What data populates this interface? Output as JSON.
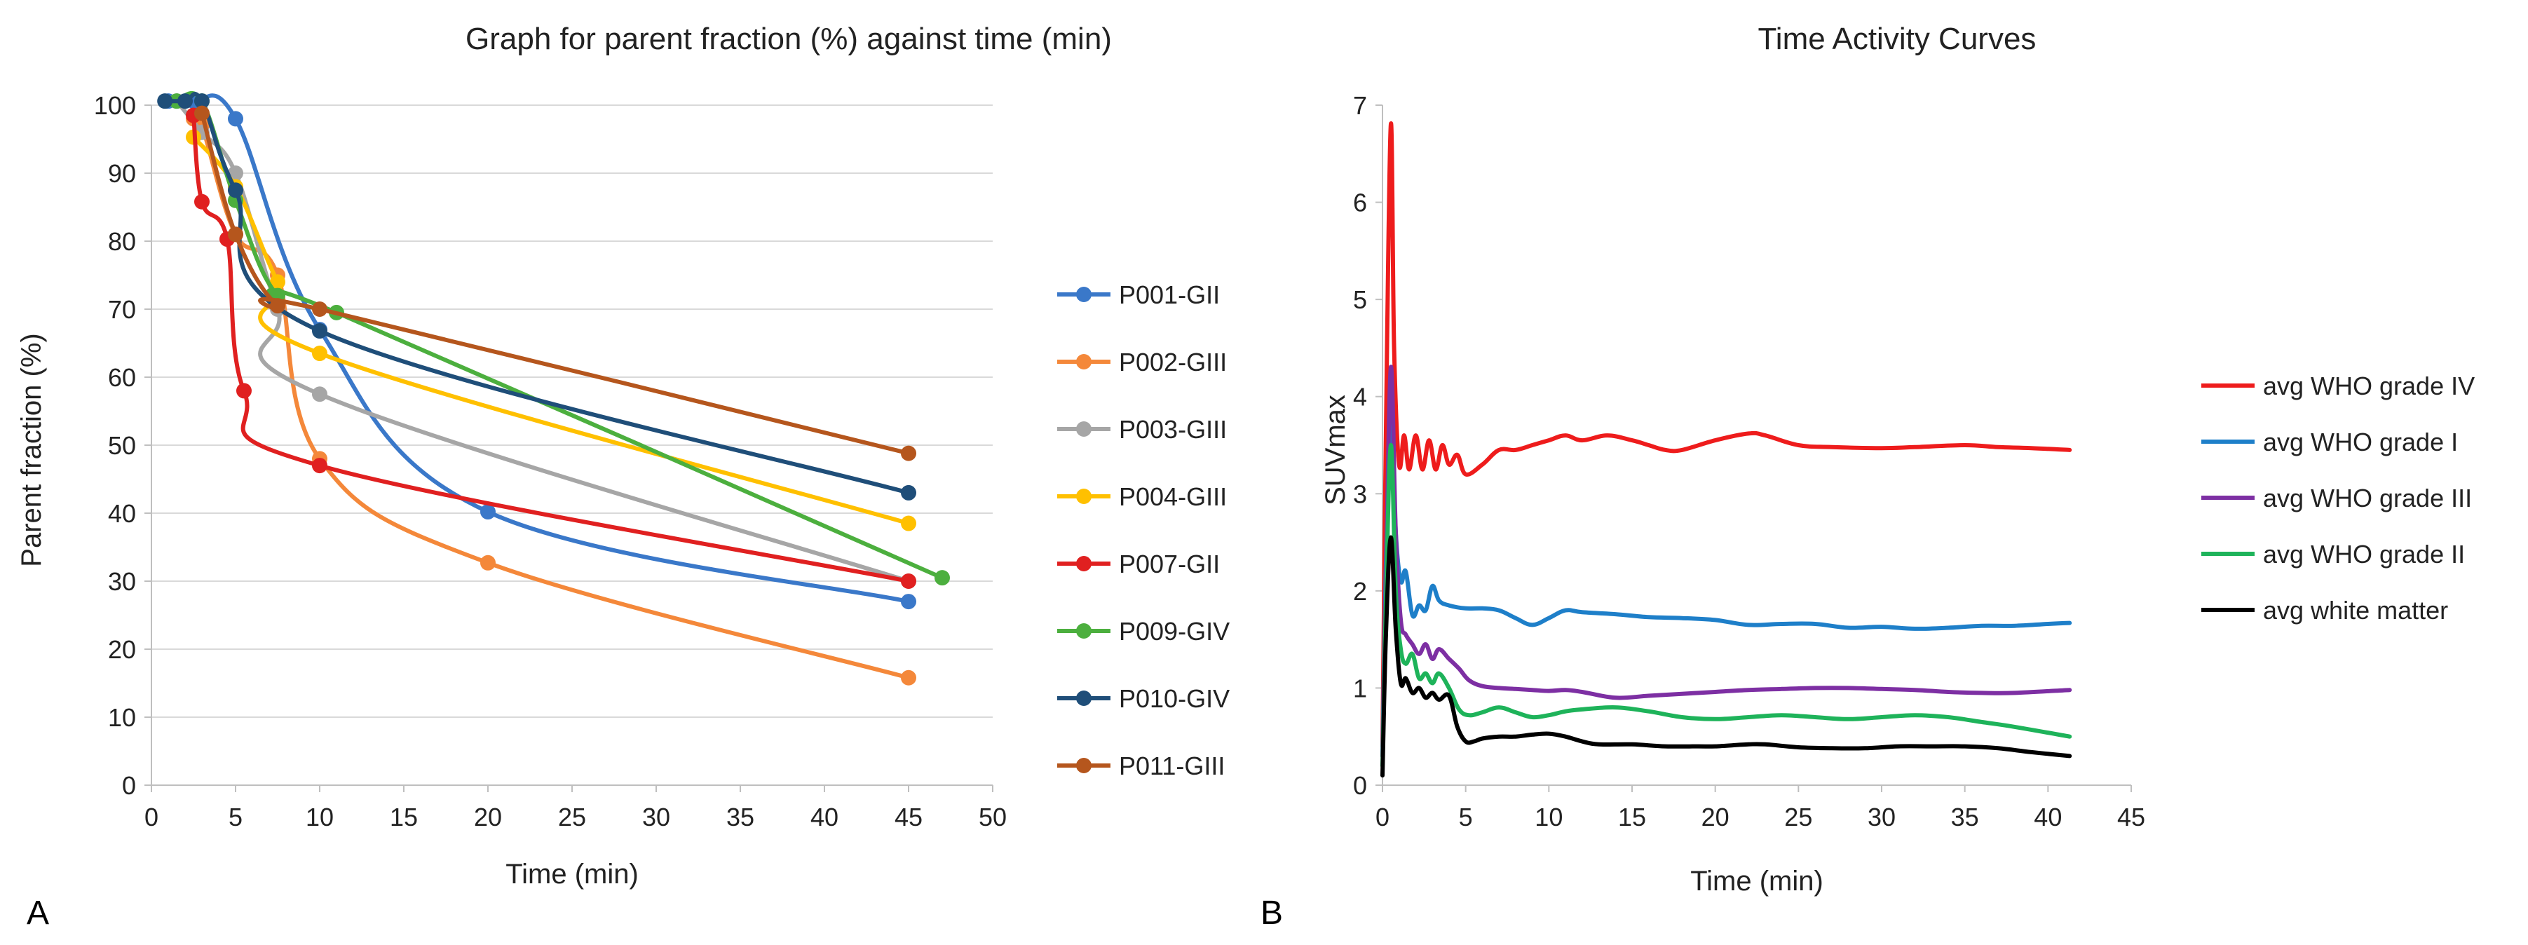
{
  "panel_labels": {
    "a": "A",
    "b": "B"
  },
  "chart_data": [
    {
      "type": "line",
      "title": "Graph for parent fraction (%) against time (min)",
      "xlabel": "Time (min)",
      "ylabel": "Parent fraction (%)",
      "xlim": [
        0,
        50
      ],
      "ylim": [
        0,
        100
      ],
      "xticks": [
        0,
        5,
        10,
        15,
        20,
        25,
        30,
        35,
        40,
        45,
        50
      ],
      "yticks": [
        0,
        10,
        20,
        30,
        40,
        50,
        60,
        70,
        80,
        90,
        100
      ],
      "grid": "horizontal",
      "legend_position": "right",
      "markers": true,
      "series": [
        {
          "name": "P001-GII",
          "color": "#3a78c9",
          "x": [
            1,
            2.5,
            5,
            10,
            20,
            45
          ],
          "y": [
            100.6,
            100.6,
            98,
            67,
            40.2,
            27
          ]
        },
        {
          "name": "P002-GIII",
          "color": "#f4883a",
          "x": [
            2.5,
            3,
            5,
            7.5,
            10,
            20,
            45
          ],
          "y": [
            98,
            97,
            81,
            75,
            48,
            32.7,
            15.8
          ]
        },
        {
          "name": "P003-GIII",
          "color": "#a6a6a6",
          "x": [
            1.5,
            3,
            5,
            7.5,
            10,
            45
          ],
          "y": [
            100.6,
            96,
            90,
            70,
            57.5,
            30
          ]
        },
        {
          "name": "P004-GIII",
          "color": "#ffc000",
          "x": [
            2.5,
            5,
            7.5,
            10,
            45
          ],
          "y": [
            95.3,
            88,
            74,
            63.5,
            38.5
          ]
        },
        {
          "name": "P007-GII",
          "color": "#e02020",
          "x": [
            2.5,
            3,
            4.5,
            5.5,
            10,
            45
          ],
          "y": [
            98.5,
            85.8,
            80.3,
            58,
            47,
            30
          ]
        },
        {
          "name": "P009-GIV",
          "color": "#4caf3e",
          "x": [
            1.5,
            3,
            5,
            7.5,
            11,
            47
          ],
          "y": [
            100.6,
            100.6,
            86,
            72,
            69.5,
            30.5
          ]
        },
        {
          "name": "P010-GIV",
          "color": "#1f4e79",
          "x": [
            0.8,
            2,
            3,
            5,
            10,
            45
          ],
          "y": [
            100.6,
            100.6,
            100.6,
            87.5,
            66.8,
            43
          ]
        },
        {
          "name": "P011-GIII",
          "color": "#b5561d",
          "x": [
            3,
            5,
            7.5,
            10,
            45
          ],
          "y": [
            98.8,
            81,
            70.5,
            70,
            48.8
          ]
        }
      ]
    },
    {
      "type": "line",
      "title": "Time Activity Curves",
      "xlabel": "Time (min)",
      "ylabel": "SUVmax",
      "xlim": [
        0,
        45
      ],
      "ylim": [
        0,
        7
      ],
      "xticks": [
        0,
        5,
        10,
        15,
        20,
        25,
        30,
        35,
        40,
        45
      ],
      "yticks": [
        0,
        1,
        2,
        3,
        4,
        5,
        6,
        7
      ],
      "grid": "none",
      "legend_position": "right",
      "markers": false,
      "series": [
        {
          "name": "avg WHO grade IV",
          "color": "#ee1c1c",
          "x": [
            0,
            0.2,
            0.5,
            0.7,
            1.0,
            1.3,
            1.6,
            2.0,
            2.4,
            2.8,
            3.2,
            3.6,
            4.0,
            4.5,
            5.0,
            6.0,
            7.0,
            8.0,
            9.0,
            10.0,
            11.0,
            12.0,
            13.5,
            15.0,
            16.0,
            17.0,
            18.0,
            20.0,
            22.0,
            23.0,
            25.0,
            27.0,
            30.0,
            32.0,
            35.0,
            37.0,
            39.0,
            41.3
          ],
          "y": [
            0.4,
            3.5,
            6.8,
            4.5,
            3.3,
            3.6,
            3.25,
            3.6,
            3.25,
            3.55,
            3.25,
            3.5,
            3.3,
            3.4,
            3.2,
            3.3,
            3.45,
            3.45,
            3.5,
            3.55,
            3.6,
            3.55,
            3.6,
            3.55,
            3.5,
            3.45,
            3.45,
            3.55,
            3.62,
            3.6,
            3.5,
            3.48,
            3.47,
            3.48,
            3.5,
            3.48,
            3.47,
            3.45
          ]
        },
        {
          "name": "avg WHO grade I",
          "color": "#1e7fc9",
          "x": [
            0,
            0.2,
            0.5,
            0.8,
            1.1,
            1.4,
            1.8,
            2.2,
            2.6,
            3.0,
            3.4,
            4.0,
            5.0,
            6.0,
            7.0,
            8.0,
            9.0,
            10.0,
            11.0,
            12.0,
            14.0,
            16.0,
            18.0,
            20.0,
            22.0,
            24.0,
            26.0,
            28.0,
            30.0,
            32.0,
            34.0,
            36.0,
            38.0,
            40.0,
            41.3
          ],
          "y": [
            0.3,
            2.2,
            3.8,
            2.6,
            2.1,
            2.2,
            1.75,
            1.85,
            1.8,
            2.05,
            1.9,
            1.85,
            1.82,
            1.82,
            1.8,
            1.72,
            1.65,
            1.72,
            1.8,
            1.78,
            1.76,
            1.73,
            1.72,
            1.7,
            1.65,
            1.66,
            1.66,
            1.62,
            1.63,
            1.61,
            1.62,
            1.64,
            1.64,
            1.66,
            1.67
          ]
        },
        {
          "name": "avg WHO grade III",
          "color": "#7d2fa3",
          "x": [
            0,
            0.2,
            0.5,
            0.8,
            1.1,
            1.4,
            1.8,
            2.2,
            2.6,
            3.0,
            3.4,
            4.0,
            4.6,
            5.2,
            6.0,
            7.0,
            8.0,
            9.0,
            10.0,
            11.0,
            12.0,
            14.0,
            16.0,
            18.0,
            20.0,
            22.0,
            24.0,
            26.0,
            28.0,
            30.0,
            32.0,
            34.0,
            36.0,
            38.0,
            41.3
          ],
          "y": [
            0.3,
            2.0,
            4.3,
            2.6,
            1.7,
            1.55,
            1.45,
            1.35,
            1.45,
            1.3,
            1.4,
            1.3,
            1.2,
            1.08,
            1.02,
            1.0,
            0.99,
            0.98,
            0.97,
            0.98,
            0.96,
            0.9,
            0.92,
            0.94,
            0.96,
            0.98,
            0.99,
            1.0,
            1.0,
            0.99,
            0.98,
            0.96,
            0.95,
            0.95,
            0.98
          ]
        },
        {
          "name": "avg WHO grade II",
          "color": "#1eb35a",
          "x": [
            0,
            0.2,
            0.5,
            0.8,
            1.1,
            1.4,
            1.8,
            2.2,
            2.6,
            3.0,
            3.4,
            4.0,
            4.6,
            5.2,
            6.0,
            7.0,
            8.0,
            9.0,
            10.0,
            11.0,
            12.0,
            14.0,
            16.0,
            18.0,
            20.0,
            22.0,
            24.0,
            26.0,
            28.0,
            30.0,
            32.0,
            34.0,
            36.0,
            38.0,
            41.3
          ],
          "y": [
            0.2,
            1.8,
            3.5,
            2.0,
            1.4,
            1.25,
            1.35,
            1.1,
            1.15,
            1.05,
            1.15,
            1.0,
            0.78,
            0.72,
            0.75,
            0.8,
            0.75,
            0.7,
            0.72,
            0.76,
            0.78,
            0.8,
            0.76,
            0.7,
            0.68,
            0.7,
            0.72,
            0.7,
            0.68,
            0.7,
            0.72,
            0.7,
            0.65,
            0.6,
            0.5
          ]
        },
        {
          "name": "avg white matter",
          "color": "#000000",
          "x": [
            0,
            0.2,
            0.5,
            0.8,
            1.1,
            1.4,
            1.8,
            2.2,
            2.6,
            3.0,
            3.4,
            4.0,
            4.5,
            5.0,
            5.5,
            6.0,
            7.0,
            8.0,
            9.0,
            10.0,
            11.0,
            12.0,
            13.0,
            15.0,
            17.0,
            19.0,
            20.0,
            22.0,
            23.0,
            25.0,
            27.0,
            29.0,
            31.0,
            33.0,
            35.0,
            37.0,
            39.0,
            41.3
          ],
          "y": [
            0.1,
            1.5,
            2.55,
            1.6,
            1.05,
            1.1,
            0.95,
            1.0,
            0.9,
            0.95,
            0.88,
            0.92,
            0.6,
            0.45,
            0.45,
            0.48,
            0.5,
            0.5,
            0.52,
            0.53,
            0.5,
            0.45,
            0.42,
            0.42,
            0.4,
            0.4,
            0.4,
            0.42,
            0.42,
            0.39,
            0.38,
            0.38,
            0.4,
            0.4,
            0.4,
            0.38,
            0.34,
            0.3
          ]
        }
      ]
    }
  ]
}
